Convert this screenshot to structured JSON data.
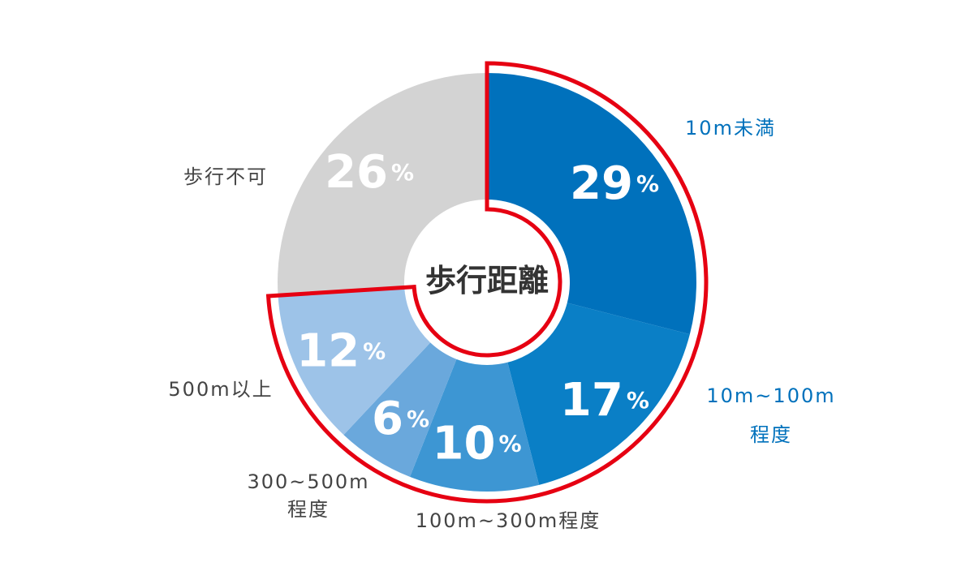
{
  "chart_data": {
    "type": "pie",
    "title": "歩行距離",
    "unit": "%",
    "start_angle_deg": 0,
    "slices": [
      {
        "label": "10m未満",
        "label_lines": [
          "10m未満"
        ],
        "value": 29,
        "color": "#0071BC",
        "label_color": "#0071BC",
        "highlighted": true
      },
      {
        "label": "10m~100m程度",
        "label_lines": [
          "10m~100m",
          "程度"
        ],
        "value": 17,
        "color": "#0A7FC6",
        "label_color": "#0071BC",
        "highlighted": true
      },
      {
        "label": "100m~300m程度",
        "label_lines": [
          "100m~300m程度"
        ],
        "value": 10,
        "color": "#3D96D3",
        "label_color": "#444444",
        "highlighted": true
      },
      {
        "label": "300~500m程度",
        "label_lines": [
          "300~500m",
          "程度"
        ],
        "value": 6,
        "color": "#6AA8DC",
        "label_color": "#444444",
        "highlighted": true
      },
      {
        "label": "500m以上",
        "label_lines": [
          "500m以上"
        ],
        "value": 12,
        "color": "#9DC3E8",
        "label_color": "#444444",
        "highlighted": true
      },
      {
        "label": "歩行不可",
        "label_lines": [
          "歩行不可"
        ],
        "value": 26,
        "color": "#D3D3D3",
        "label_color": "#444444",
        "highlighted": false
      }
    ],
    "highlight_color": "#E60012",
    "legend": "none",
    "grid": false
  }
}
